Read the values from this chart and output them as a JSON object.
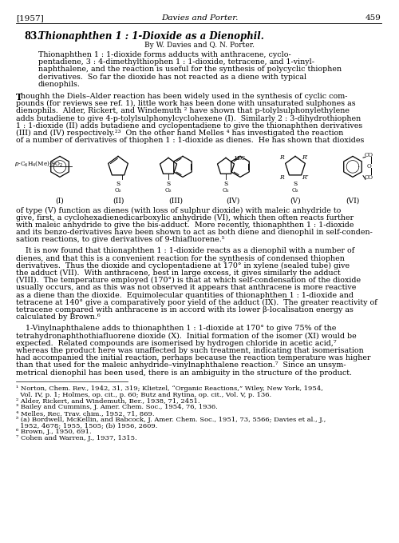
{
  "page_number_left": "[1957]",
  "header_center": "Davies and Porter.",
  "page_number_right": "459",
  "section_number": "83.",
  "title_italic": "Thionaphthen 1 : 1-Dioxide as a Dienophil.",
  "byline": "By W. Davies and Q. N. Porter.",
  "abstract_lines": [
    "Thionaphthen 1 : 1-dioxide forms adducts with anthracene, cyclo-",
    "pentadiene, 3 : 4-dimethylthiophen 1 : 1-dioxide, tetracene, and 1-vinyl-",
    "naphthalene, and the reaction is useful for the synthesis of polycyclic thiophen",
    "derivatives.  So far the dioxide has not reacted as a diene with typical",
    "dienophils."
  ],
  "para1_first": "Though the Diels–Alder reaction has been widely used in the synthesis of cyclic com-",
  "para1_rest": [
    "pounds (for reviews see ref. 1), little work has been done with unsaturated sulphones as",
    "dienophils.  Alder, Rickert, and Windemuth ² have shown that p-tolylsulphonylethylene",
    "adds butadiene to give 4-p-tolylsulphonylcyclohexene (I).  Similarly 2 : 3-dihydrothiophen",
    "1 : 1-dioxide (II) adds butadiene and cyclopentadiene to give the thionaphthen derivatives",
    "(III) and (IV) respectively.²³  On the other hand Melles ⁴ has investigated the reaction",
    "of a number of derivatives of thiophen 1 : 1-dioxide as dienes.  He has shown that dioxides"
  ],
  "para2_lines": [
    "of type (V) function as dienes (with loss of sulphur dioxide) with maleic anhydride to",
    "give, first, a cyclohexadienedicarboxylic anhydride (VI), which then often reacts further",
    "with maleic anhydride to give the bis-adduct.  More recently, thionaphthen 1 : 1-dioxide",
    "and its benzo-derivatives have been shown to act as both diene and dienophil in self-conden-",
    "sation reactions, to give derivatives of 9-thiafluorene.⁵"
  ],
  "para3_lines": [
    "    It is now found that thionaphthen 1 : 1-dioxide reacts as a dienophil with a number of",
    "dienes, and that this is a convenient reaction for the synthesis of condensed thiophen",
    "derivatives.  Thus the dioxide and cyclopentadiene at 170° in xylene (sealed tube) give",
    "the adduct (VII).  With anthracene, best in large excess, it gives similarly the adduct",
    "(VIII).  The temperature employed (170°) is that at which self-condensation of the dioxide",
    "usually occurs, and as this was not observed it appears that anthracene is more reactive",
    "as a diene than the dioxide.  Equimolecular quantities of thionaphthen 1 : 1-dioxide and",
    "tetracene at 140° give a comparatively poor yield of the adduct (IX).  The greater reactivity of",
    "tetracene compared with anthracene is in accord with its lower β-localisation energy as",
    "calculated by Brown.⁶"
  ],
  "para4_lines": [
    "    1-Vinylnaphthalene adds to thionaphthen 1 : 1-dioxide at 170° to give 75% of the",
    "tetrahydronaphthothiafluorene dioxide (X).  Initial formation of the isomer (XI) would be",
    "expected.  Related compounds are isomerised by hydrogen chloride in acetic acid,⁷",
    "whereas the product here was unaffected by such treatment, indicating that isomerisation",
    "had accompanied the initial reaction, perhaps because the reaction temperature was higher",
    "than that used for the maleic anhydride–vinylnaphthalene reaction.⁷  Since an unsym-",
    "metrical dienophil has been used, there is an ambiguity in the structure of the product."
  ],
  "footnote_lines": [
    "¹ Norton, Chem. Rev., 1942, 31, 319; Klietzel, “Organic Reactions,” Wiley, New York, 1954,",
    "  Vol. IV, p. 1; Holmes, op. cit., p. 60; Butz and Rytina, op. cit., Vol. V, p. 136.",
    "² Alder, Rickert, and Windemuth, Ber., 1938, 71, 2451.",
    "³ Bailey and Cummins, J. Amer. Chem. Soc., 1954, 76, 1936.",
    "⁴ Melles, Rec. Trav. chim., 1952, 71, 869.",
    "⁵ (a) Bordwell, McKellin, and Babcock, J. Amer. Chem. Soc., 1951, 73, 5566; Davies et al., J.,",
    "  1952, 4678; 1955, 1505; (b) 1956, 2609.",
    "⁶ Brown, J., 1950, 691.",
    "⁷ Cohen and Warren, J., 1937, 1315."
  ],
  "background_color": "#ffffff",
  "text_color": "#000000"
}
